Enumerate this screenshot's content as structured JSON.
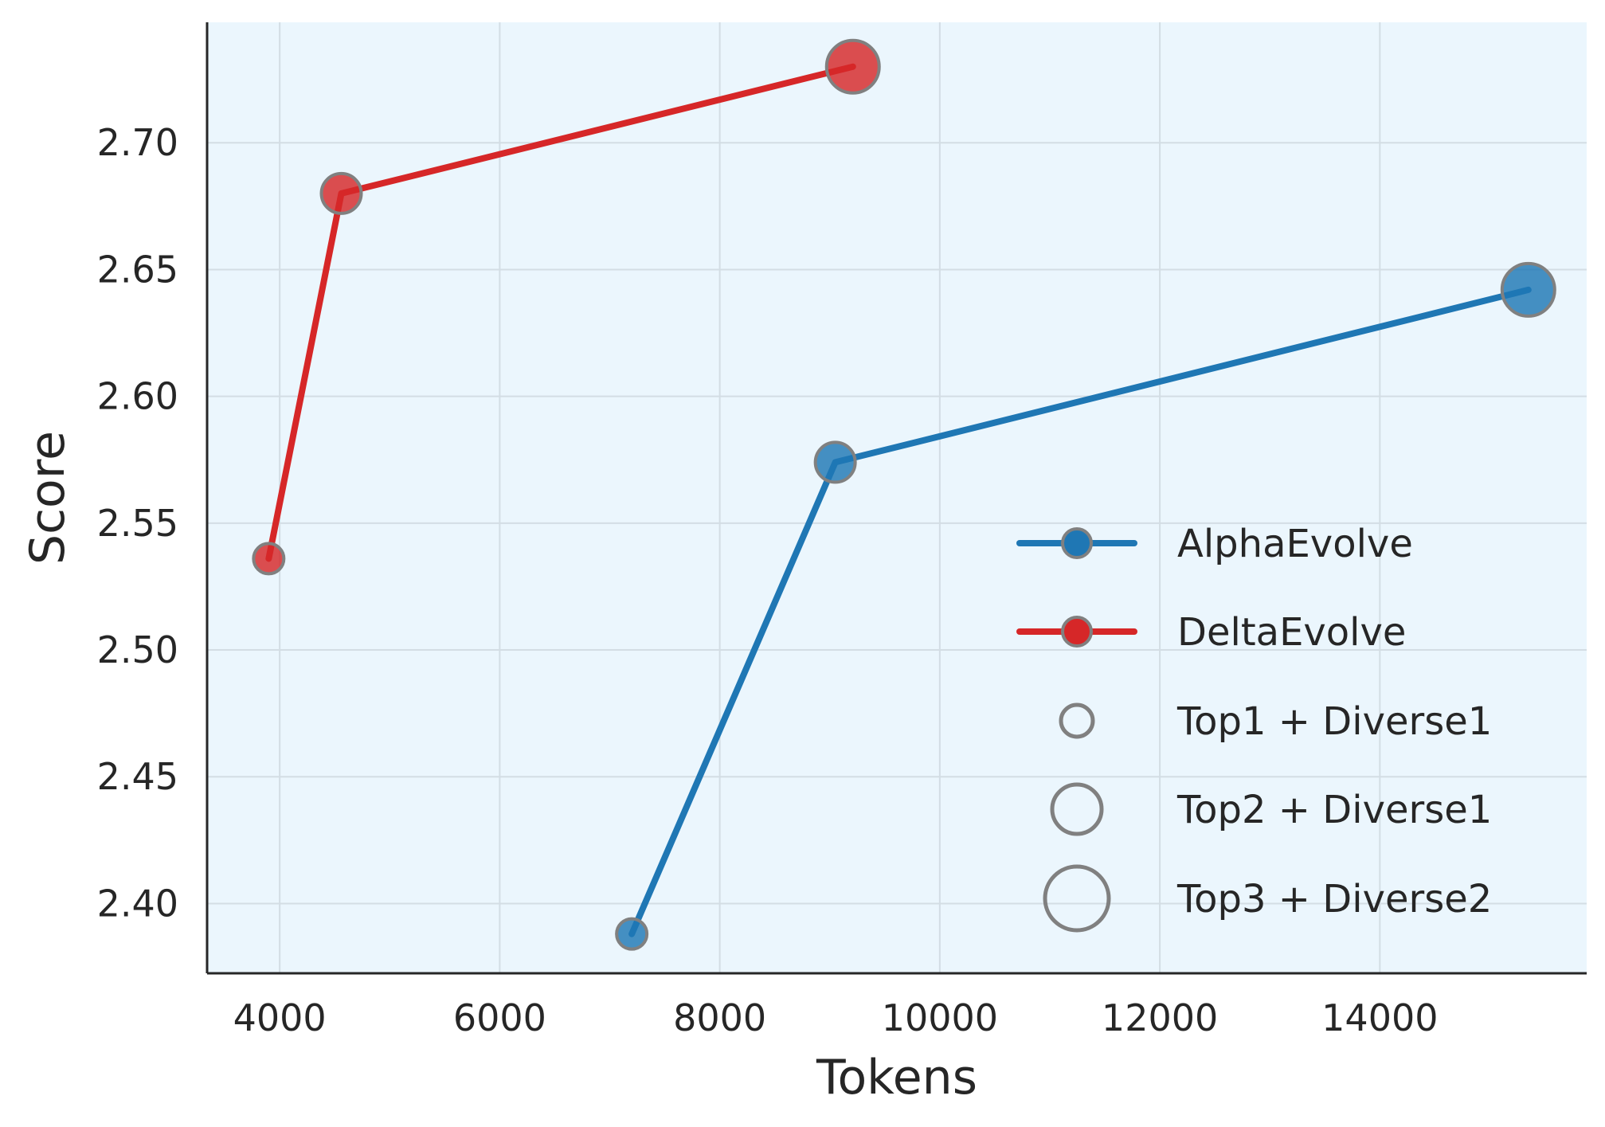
{
  "chart_data": {
    "type": "line",
    "xlabel": "Tokens",
    "ylabel": "Score",
    "xlim": [
      3340,
      15880
    ],
    "ylim": [
      2.3725,
      2.7475
    ],
    "xticks": [
      4000,
      6000,
      8000,
      10000,
      12000,
      14000
    ],
    "yticks": [
      2.4,
      2.45,
      2.5,
      2.55,
      2.6,
      2.65,
      2.7
    ],
    "grid": true,
    "background": "#ebf6fd",
    "legend_position": "lower-right",
    "series": [
      {
        "name": "AlphaEvolve",
        "color": "#1f77b4",
        "x": [
          7200,
          9050,
          15350
        ],
        "y": [
          2.388,
          2.574,
          2.642
        ],
        "size_group": [
          0,
          1,
          2
        ]
      },
      {
        "name": "DeltaEvolve",
        "color": "#d62728",
        "x": [
          3900,
          4560,
          9210
        ],
        "y": [
          2.536,
          2.68,
          2.73
        ],
        "size_group": [
          0,
          1,
          2
        ]
      }
    ],
    "size_legend": [
      {
        "label": "Top1 + Diverse1"
      },
      {
        "label": "Top2 + Diverse1"
      },
      {
        "label": "Top3 + Diverse2"
      }
    ]
  }
}
